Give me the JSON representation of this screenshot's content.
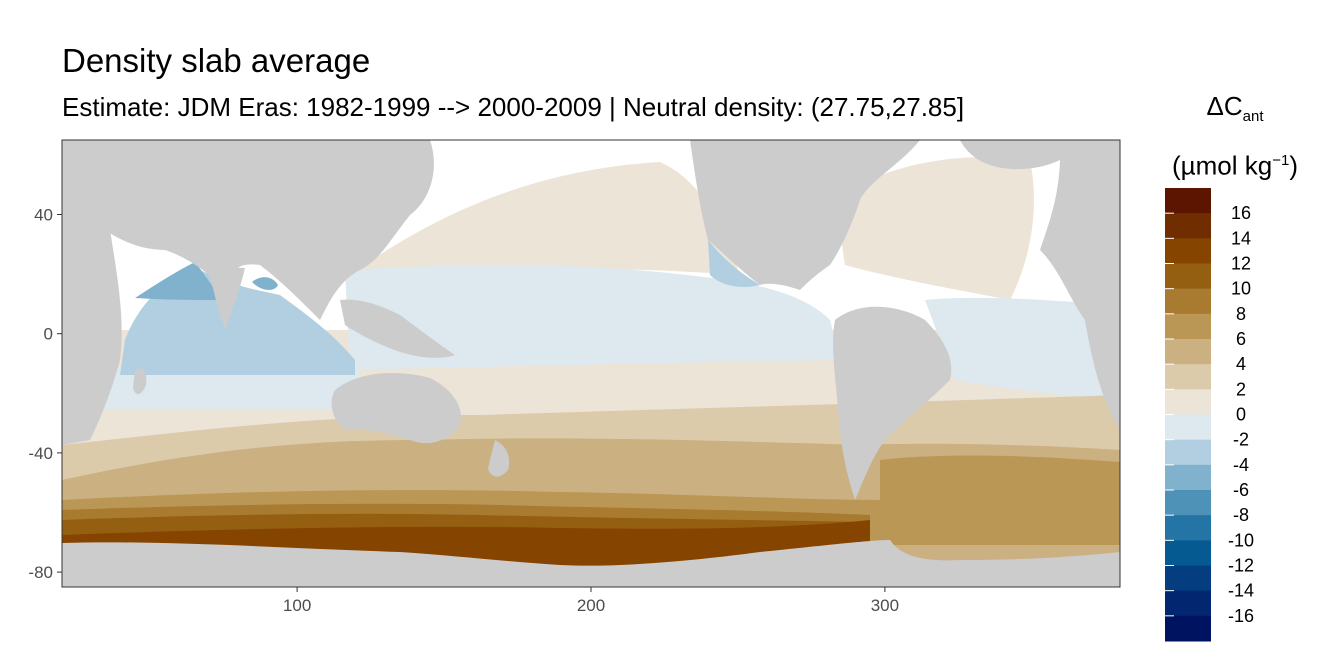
{
  "title": "Density slab average",
  "subtitle": "Estimate: JDM Eras: 1982-1999 --> 2000-2009 | Neutral density: (27.75,27.85]",
  "legend": {
    "label_main": "ΔC",
    "label_sub": "ant",
    "label_unit_pre": "(µmol kg",
    "label_unit_sup": "−1",
    "label_unit_post": ")",
    "bins": [
      {
        "lo": 16,
        "hi": 18,
        "color": "#5c1500"
      },
      {
        "lo": 14,
        "hi": 16,
        "color": "#702e00"
      },
      {
        "lo": 12,
        "hi": 14,
        "color": "#854400"
      },
      {
        "lo": 10,
        "hi": 12,
        "color": "#955f12"
      },
      {
        "lo": 8,
        "hi": 10,
        "color": "#a87b30"
      },
      {
        "lo": 6,
        "hi": 8,
        "color": "#bb9756"
      },
      {
        "lo": 4,
        "hi": 6,
        "color": "#cbb081"
      },
      {
        "lo": 2,
        "hi": 4,
        "color": "#dccbaa"
      },
      {
        "lo": 0,
        "hi": 2,
        "color": "#ece4d6"
      },
      {
        "lo": -2,
        "hi": 0,
        "color": "#dde8ef"
      },
      {
        "lo": -4,
        "hi": -2,
        "color": "#b1cfe0"
      },
      {
        "lo": -6,
        "hi": -4,
        "color": "#81b2cd"
      },
      {
        "lo": -8,
        "hi": -6,
        "color": "#4f92b8"
      },
      {
        "lo": -10,
        "hi": -8,
        "color": "#2474a5"
      },
      {
        "lo": -12,
        "hi": -10,
        "color": "#065a92"
      },
      {
        "lo": -14,
        "hi": -12,
        "color": "#043e80"
      },
      {
        "lo": -16,
        "hi": -14,
        "color": "#022670"
      },
      {
        "lo": -18,
        "hi": -16,
        "color": "#001360"
      }
    ],
    "tick_labels": [
      "16",
      "14",
      "12",
      "10",
      "8",
      "6",
      "4",
      "2",
      "0",
      "-2",
      "-4",
      "-6",
      "-8",
      "-10",
      "-12",
      "-14",
      "-16"
    ]
  },
  "chart_data": {
    "type": "heatmap",
    "title": "Density slab average",
    "subtitle": "Estimate: JDM Eras: 1982-1999 --> 2000-2009 | Neutral density: (27.75,27.85]",
    "xlim": [
      20,
      380
    ],
    "ylim": [
      -85,
      65
    ],
    "x_ticks": [
      100,
      200,
      300
    ],
    "y_ticks": [
      40,
      0,
      -40,
      -80
    ],
    "land_color": "#cccccc",
    "missing_color": "#ffffff",
    "grid": false,
    "legend_position": "right"
  }
}
